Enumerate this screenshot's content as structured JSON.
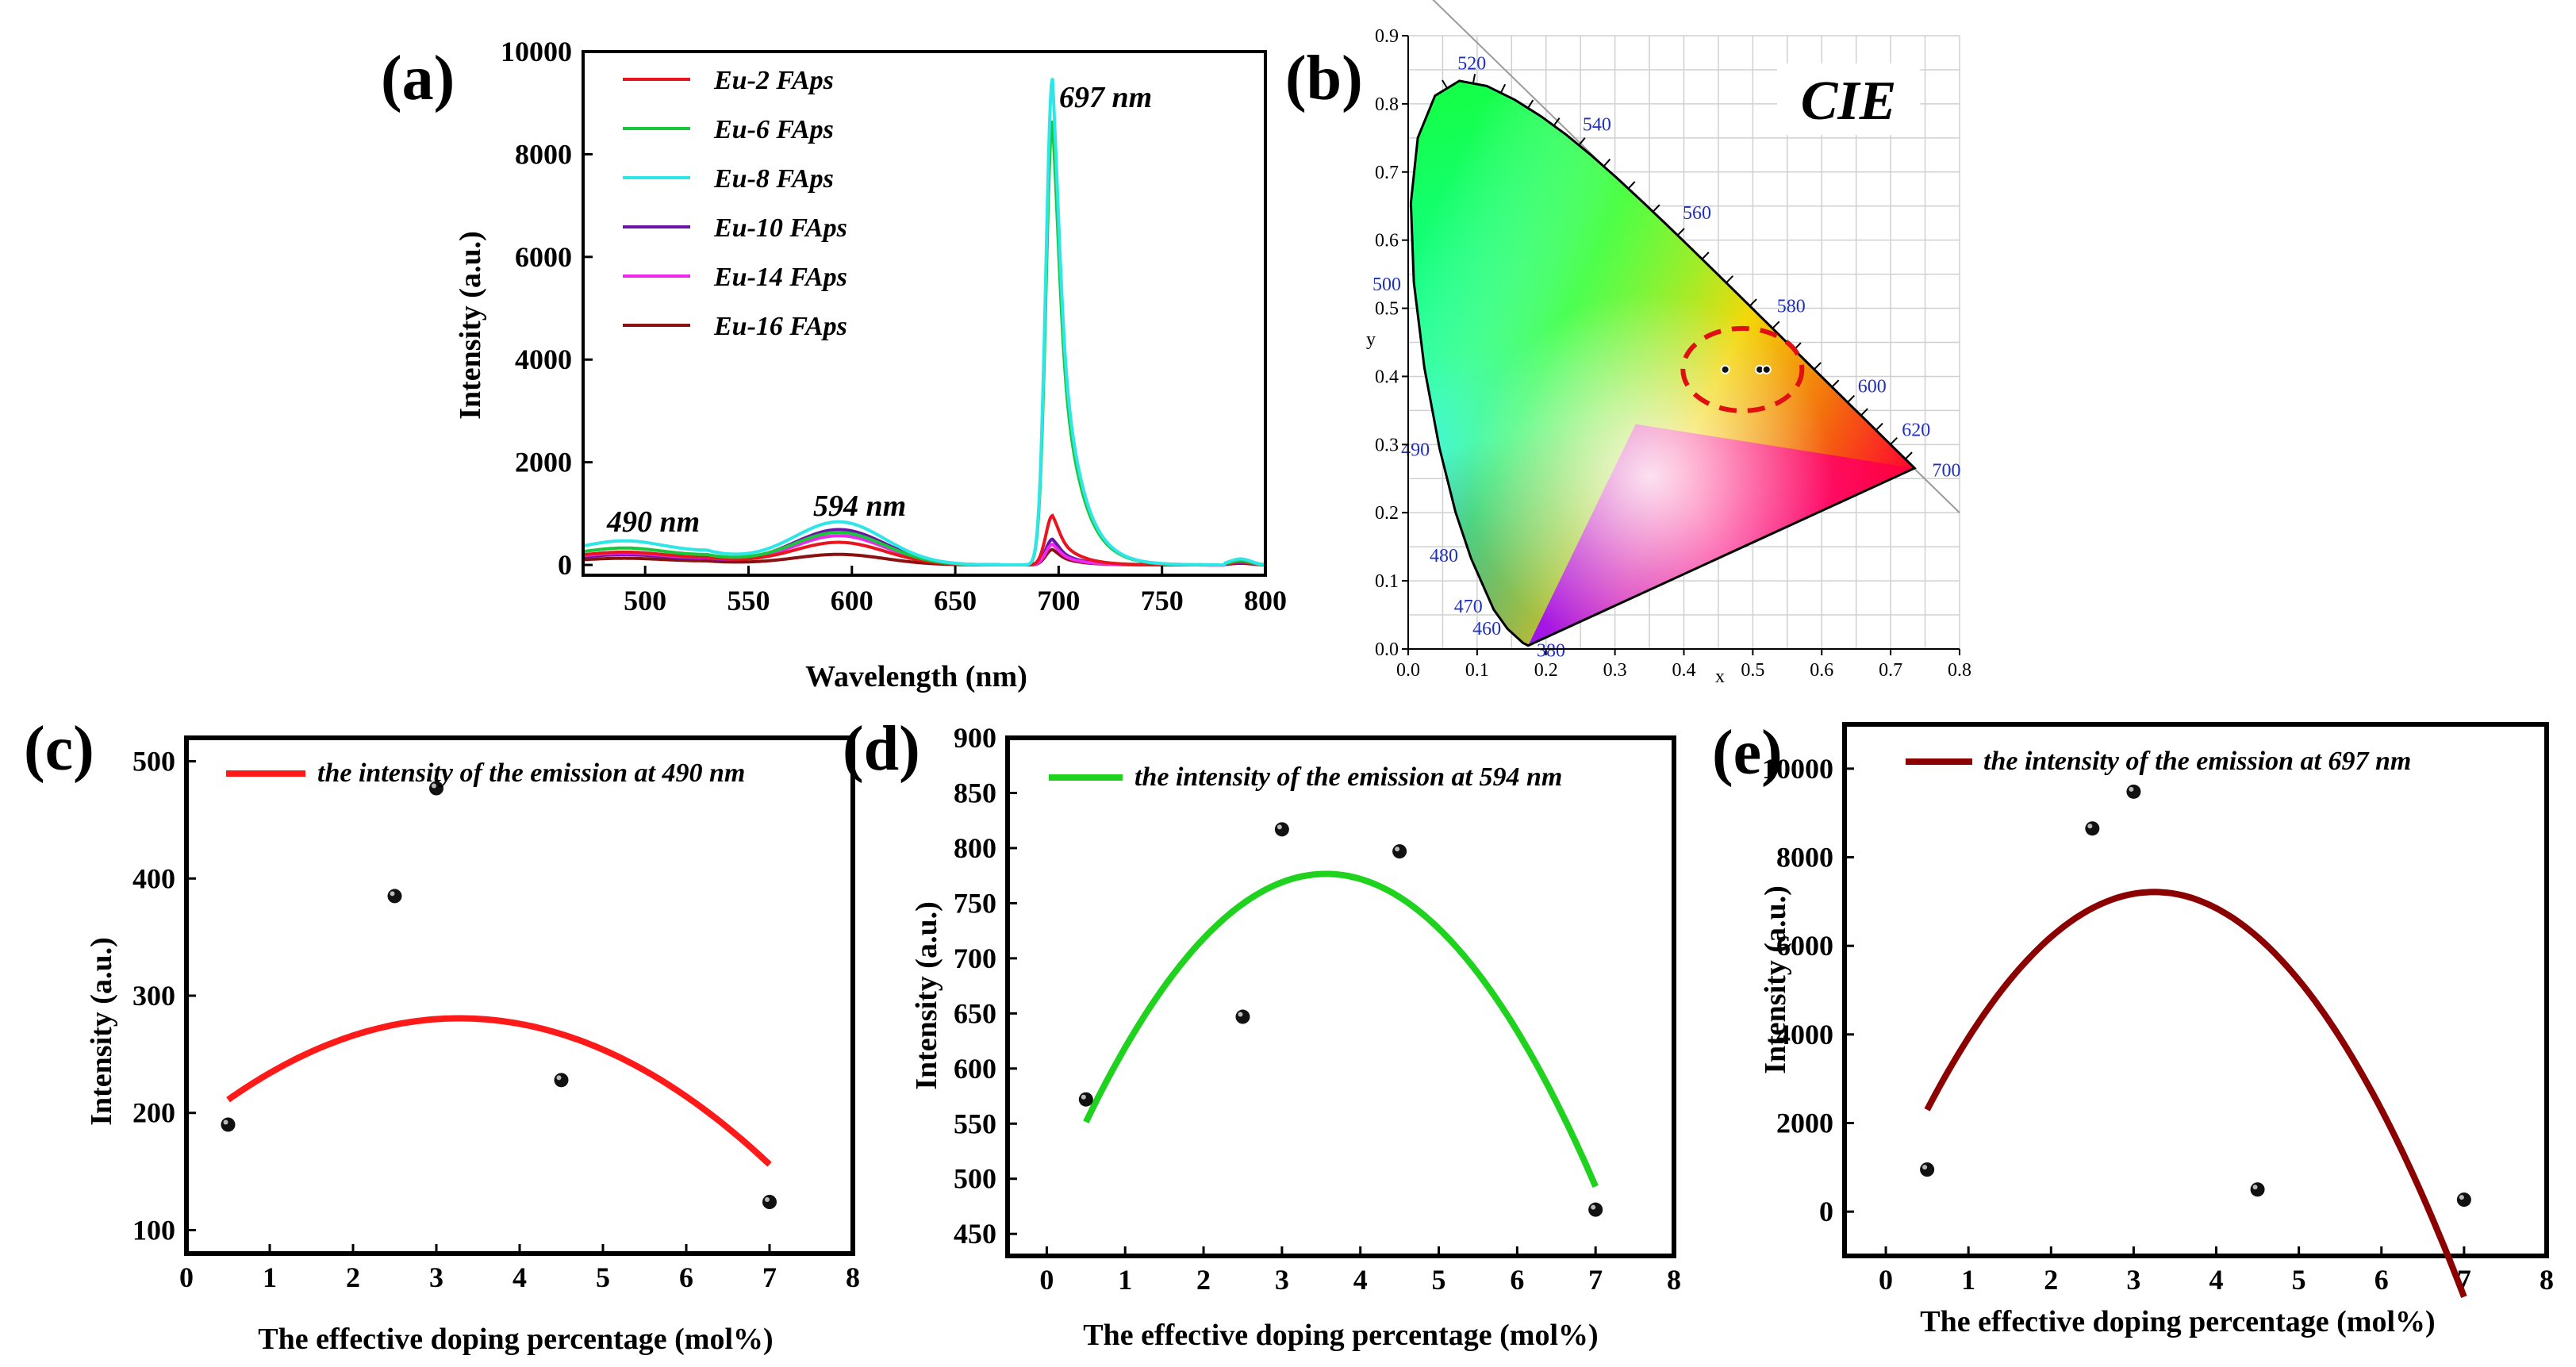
{
  "colors": {
    "eu2": "#e8141e",
    "eu6": "#19c83a",
    "eu8": "#2ee6e6",
    "eu10": "#6a14a8",
    "eu14": "#ee28ee",
    "eu16": "#8b1010",
    "fit_c": "#ff1a1a",
    "fit_d": "#1ed21e",
    "fit_e": "#8b0000",
    "ring": "#e01010"
  },
  "chart_data": [
    {
      "id": "a",
      "type": "line",
      "panel_label": "(a)",
      "xlabel": "Wavelength (nm)",
      "ylabel": "Intensity (a.u.)",
      "xlim": [
        470,
        800
      ],
      "ylim": [
        -200,
        10000
      ],
      "xticks": [
        500,
        550,
        600,
        650,
        700,
        750,
        800
      ],
      "yticks": [
        0,
        2000,
        4000,
        6000,
        8000,
        10000
      ],
      "legend_position": "top-left",
      "annotations": [
        "490 nm",
        "594 nm",
        "697 nm"
      ],
      "series": [
        {
          "name": "Eu-2 FAps",
          "color_key": "eu2",
          "base490": 250,
          "base594": 430,
          "peak697": 960
        },
        {
          "name": "Eu-6 FAps",
          "color_key": "eu6",
          "base490": 330,
          "base594": 620,
          "peak697": 8650
        },
        {
          "name": "Eu-8 FAps",
          "color_key": "eu8",
          "base490": 470,
          "base594": 820,
          "peak697": 9480
        },
        {
          "name": "Eu-10 FAps",
          "color_key": "eu10",
          "base490": 200,
          "base594": 680,
          "peak697": 500
        },
        {
          "name": "Eu-14 FAps",
          "color_key": "eu14",
          "base490": 230,
          "base594": 560,
          "peak697": 400
        },
        {
          "name": "Eu-16 FAps",
          "color_key": "eu16",
          "base490": 130,
          "base594": 200,
          "peak697": 300
        }
      ]
    },
    {
      "id": "b",
      "type": "scatter",
      "panel_label": "(b)",
      "title": "CIE",
      "xlabel": "x",
      "ylabel": "y",
      "xlim": [
        0.0,
        0.8
      ],
      "ylim": [
        0.0,
        0.9
      ],
      "xticks": [
        "0.0",
        "0.1",
        "0.2",
        "0.3",
        "0.4",
        "0.5",
        "0.6",
        "0.7",
        "0.8"
      ],
      "yticks": [
        "0.0",
        "0.1",
        "0.2",
        "0.3",
        "0.4",
        "0.5",
        "0.6",
        "0.7",
        "0.8",
        "0.9"
      ],
      "wavelength_labels": [
        {
          "label": "380",
          "x": 0.175,
          "y": 0.005
        },
        {
          "label": "460",
          "x": 0.144,
          "y": 0.03
        },
        {
          "label": "470",
          "x": 0.124,
          "y": 0.058
        },
        {
          "label": "480",
          "x": 0.091,
          "y": 0.133
        },
        {
          "label": "490",
          "x": 0.045,
          "y": 0.295
        },
        {
          "label": "500",
          "x": 0.008,
          "y": 0.538
        },
        {
          "label": "520",
          "x": 0.074,
          "y": 0.834
        },
        {
          "label": "540",
          "x": 0.23,
          "y": 0.754
        },
        {
          "label": "560",
          "x": 0.373,
          "y": 0.624
        },
        {
          "label": "580",
          "x": 0.512,
          "y": 0.487
        },
        {
          "label": "600",
          "x": 0.627,
          "y": 0.372
        },
        {
          "label": "620",
          "x": 0.691,
          "y": 0.308
        },
        {
          "label": "700",
          "x": 0.735,
          "y": 0.265
        }
      ],
      "points": [
        {
          "x": 0.46,
          "y": 0.41
        },
        {
          "x": 0.51,
          "y": 0.41
        },
        {
          "x": 0.52,
          "y": 0.41
        }
      ]
    },
    {
      "id": "c",
      "type": "scatter",
      "panel_label": "(c)",
      "xlabel": "The effective doping percentage (mol%)",
      "ylabel": "Intensity (a.u.)",
      "xlim": [
        0,
        8
      ],
      "ylim": [
        80,
        520
      ],
      "xticks": [
        0,
        1,
        2,
        3,
        4,
        5,
        6,
        7,
        8
      ],
      "yticks": [
        100,
        200,
        300,
        400,
        500
      ],
      "legend": "the intensity of the emission at 490 nm",
      "fit_color_key": "fit_c",
      "fit_range": [
        0.5,
        7
      ],
      "fit_coeffs": {
        "a": -9.0,
        "b": 59.0,
        "c": 184.0
      },
      "points": [
        {
          "x": 0.5,
          "y": 190
        },
        {
          "x": 2.5,
          "y": 385
        },
        {
          "x": 3.0,
          "y": 477
        },
        {
          "x": 4.5,
          "y": 228
        },
        {
          "x": 7.0,
          "y": 124
        }
      ]
    },
    {
      "id": "d",
      "type": "scatter",
      "panel_label": "(d)",
      "xlabel": "The effective doping percentage (mol%)",
      "ylabel": "Intensity (a.u.)",
      "xlim": [
        -0.5,
        8
      ],
      "ylim": [
        430,
        900
      ],
      "xticks": [
        0,
        1,
        2,
        3,
        4,
        5,
        6,
        7,
        8
      ],
      "yticks": [
        450,
        500,
        550,
        600,
        650,
        700,
        750,
        800,
        850,
        900
      ],
      "legend": "the intensity of the emission at 594 nm",
      "fit_color_key": "fit_d",
      "fit_range": [
        0.5,
        7
      ],
      "fit_coeffs": {
        "a": -24.0,
        "b": 171.0,
        "c": 472.0
      },
      "points": [
        {
          "x": 0.5,
          "y": 572
        },
        {
          "x": 2.5,
          "y": 647
        },
        {
          "x": 3.0,
          "y": 817
        },
        {
          "x": 4.5,
          "y": 797
        },
        {
          "x": 7.0,
          "y": 472
        }
      ]
    },
    {
      "id": "e",
      "type": "scatter",
      "panel_label": "(e)",
      "xlabel": "The effective doping percentage (mol%)",
      "ylabel": "Intensity (a.u.)",
      "xlim": [
        -0.5,
        8
      ],
      "ylim": [
        -1000,
        11000
      ],
      "xticks": [
        0,
        1,
        2,
        3,
        4,
        5,
        6,
        7,
        8
      ],
      "yticks": [
        0,
        2000,
        4000,
        6000,
        8000,
        10000
      ],
      "legend": "the intensity of the emission at 697 nm",
      "fit_color_key": "fit_e",
      "fit_range": [
        0.5,
        7
      ],
      "fit_coeffs": {
        "a": -650.0,
        "b": 4225.0,
        "c": 350.0
      },
      "points": [
        {
          "x": 0.5,
          "y": 950
        },
        {
          "x": 2.5,
          "y": 8650
        },
        {
          "x": 3.0,
          "y": 9480
        },
        {
          "x": 4.5,
          "y": 500
        },
        {
          "x": 7.0,
          "y": 270
        }
      ]
    }
  ]
}
